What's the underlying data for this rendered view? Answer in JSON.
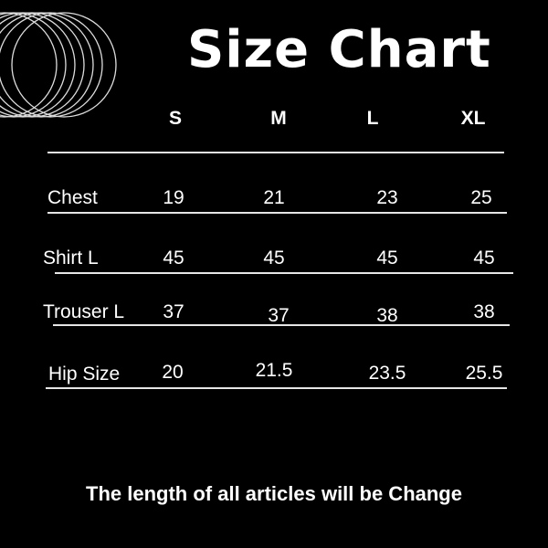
{
  "title": "Size Chart",
  "sizes": [
    "S",
    "M",
    "L",
    "XL"
  ],
  "rows": [
    {
      "label": "Chest",
      "values": [
        "19",
        "21",
        "23",
        "25"
      ]
    },
    {
      "label": "Shirt L",
      "values": [
        "45",
        "45",
        "45",
        "45"
      ]
    },
    {
      "label": "Trouser L",
      "values": [
        "37",
        "37",
        "38",
        "38"
      ]
    },
    {
      "label": "Hip Size",
      "values": [
        "20",
        "21.5",
        "23.5",
        "25.5"
      ]
    }
  ],
  "footer": "The length of all articles will be Change",
  "colors": {
    "background": "#000000",
    "text": "#ffffff",
    "lines": "#e6e6e6"
  }
}
